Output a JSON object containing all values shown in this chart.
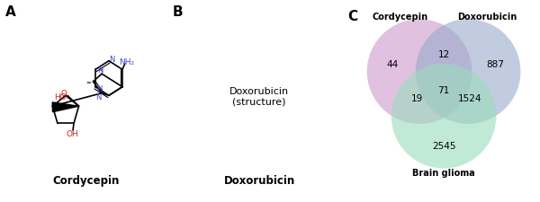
{
  "panel_A_label": "A",
  "panel_B_label": "B",
  "panel_C_label": "C",
  "cordycepin_name": "Cordycepin",
  "doxorubicin_name": "Doxorubicin",
  "venn_labels": [
    "Cordycepin",
    "Doxorubicin",
    "Brain glioma"
  ],
  "venn_values": {
    "A_only": 44,
    "B_only": 887,
    "C_only": 2545,
    "AB": 12,
    "AC": 19,
    "BC": 1524,
    "ABC": 71
  },
  "venn_colors": [
    "#cc99cc",
    "#99aacc",
    "#99ddbb"
  ],
  "venn_alpha": 0.6,
  "background_color": "#ffffff"
}
